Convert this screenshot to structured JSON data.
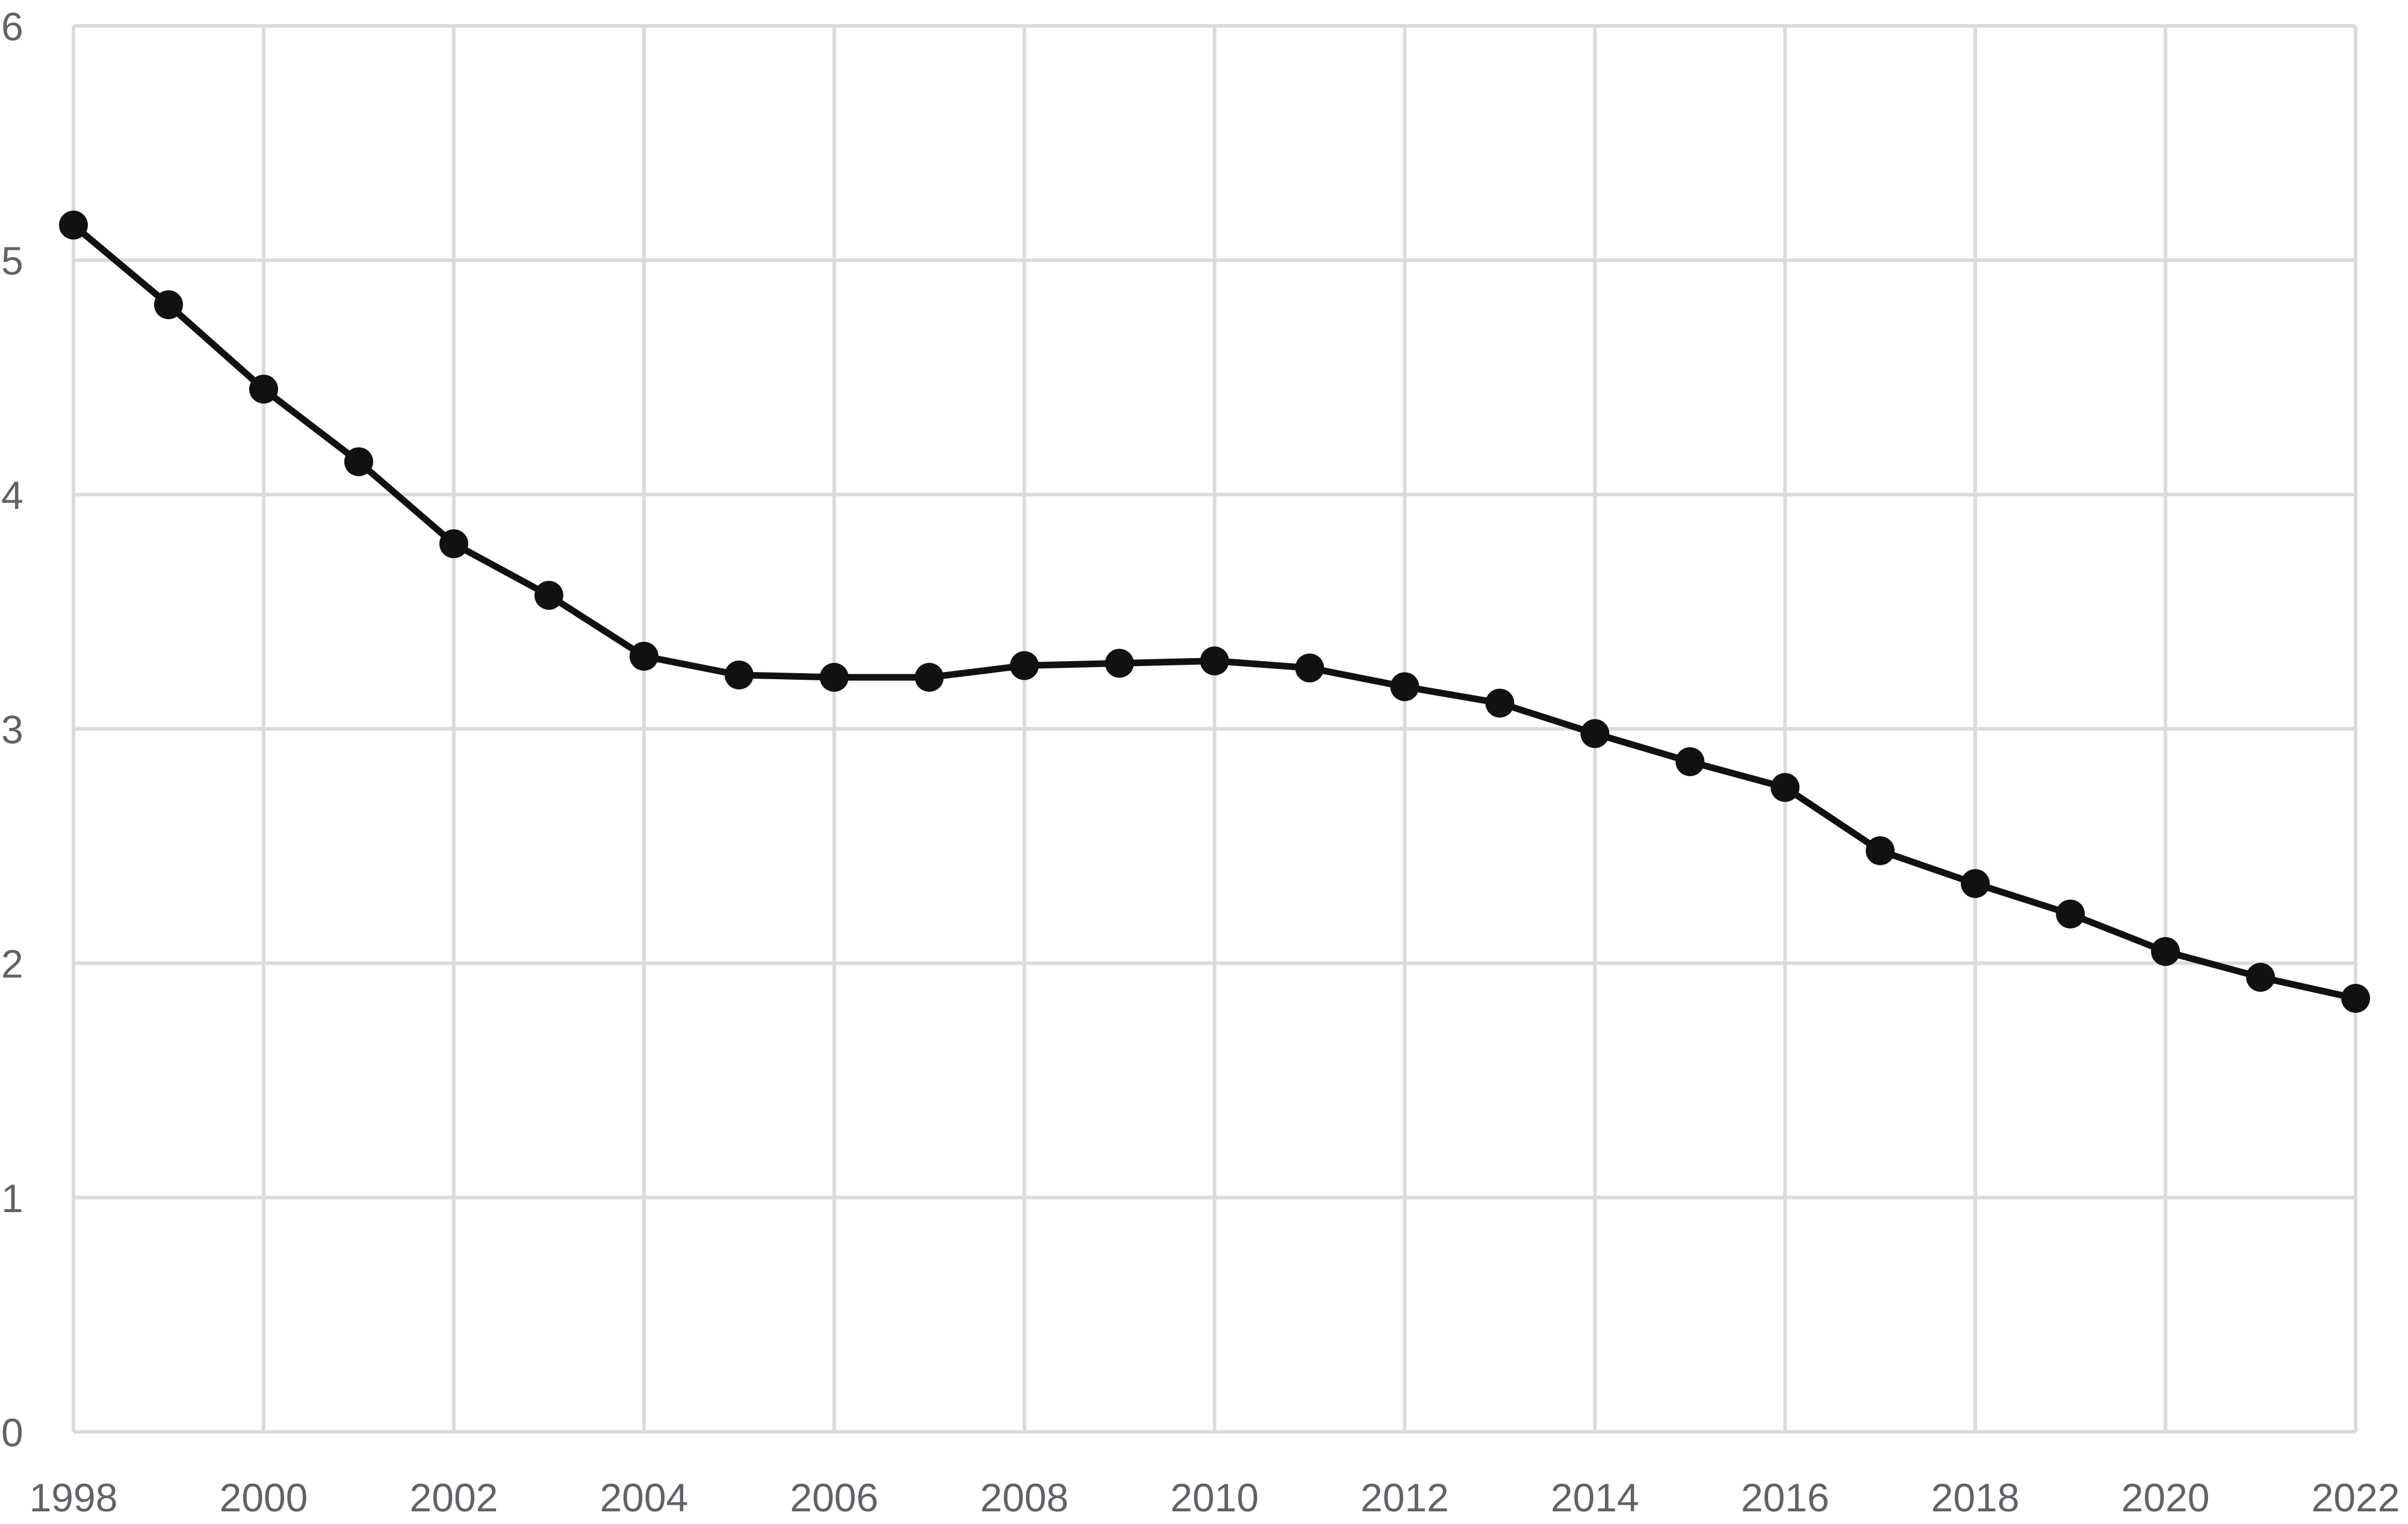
{
  "chart_data": {
    "type": "line",
    "title": "",
    "xlabel": "",
    "ylabel": "",
    "x": [
      1998,
      1999,
      2000,
      2001,
      2002,
      2003,
      2004,
      2005,
      2006,
      2007,
      2008,
      2009,
      2010,
      2011,
      2012,
      2013,
      2014,
      2015,
      2016,
      2017,
      2018,
      2019,
      2020,
      2021,
      2022
    ],
    "series": [
      {
        "values": [
          5.15,
          4.81,
          4.45,
          4.14,
          3.79,
          3.57,
          3.31,
          3.23,
          3.22,
          3.22,
          3.27,
          3.28,
          3.29,
          3.26,
          3.18,
          3.11,
          2.98,
          2.86,
          2.75,
          2.48,
          2.34,
          2.21,
          2.05,
          1.94,
          1.85
        ]
      }
    ],
    "xlim": [
      1998,
      2022
    ],
    "ylim": [
      0,
      6
    ],
    "x_ticks": [
      "1998",
      "2000",
      "2002",
      "2004",
      "2006",
      "2008",
      "2010",
      "2012",
      "2014",
      "2016",
      "2018",
      "2020",
      "2022"
    ],
    "y_ticks": [
      "0",
      "1",
      "2",
      "3",
      "4",
      "5",
      "6"
    ],
    "grid": true,
    "line_color": "#111111",
    "grid_color": "#dadcdc",
    "label_color": "#5f6368"
  }
}
